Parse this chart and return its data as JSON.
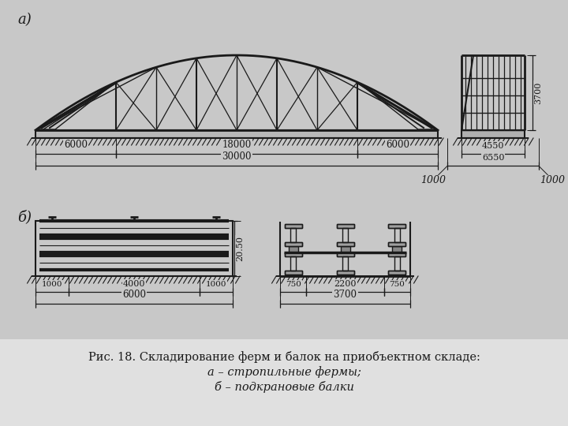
{
  "bg_color": "#c8c8c8",
  "fig_bg": "#c8c8c8",
  "caption_bg": "#e8e8e8",
  "caption_line1": "Рис. 18. Складирование ферм и балок на приобъектном складе:",
  "caption_line2": "а – стропильные фермы;",
  "caption_line3": "б – подкрановые балки",
  "label_a": "а)",
  "label_b": "б)",
  "font_size_caption": 10.5,
  "line_color": "#1a1a1a"
}
